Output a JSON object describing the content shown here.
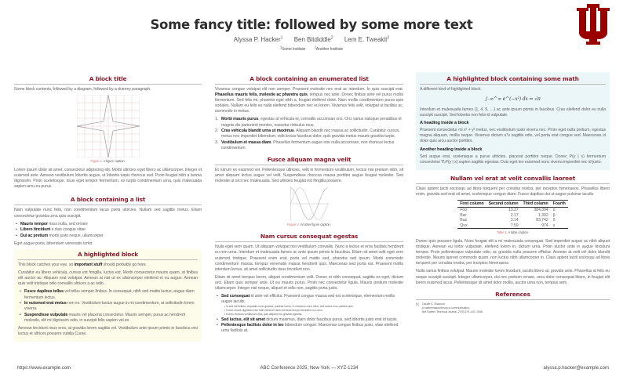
{
  "header": {
    "title": "Some fancy title: followed by some more text",
    "authors": [
      {
        "name": "Alyssa P. Hacker",
        "sup": "1"
      },
      {
        "name": "Ben Bitdiddle",
        "sup": "2"
      },
      {
        "name": "Lem E. Tweakit",
        "sup": "2"
      }
    ],
    "institutes": [
      {
        "sup": "1",
        "name": "Some Institute"
      },
      {
        "sup": "2",
        "name": "Another Institute"
      }
    ],
    "logo_text": "IU",
    "logo_color": "#990000"
  },
  "colors": {
    "block_title": "#8b1a2b",
    "highlight_yellow": "#fdfbea",
    "highlight_blue": "#eaf6f8"
  },
  "col1": {
    "b1": {
      "title": "A block title",
      "intro": "Some block contents, followed by a diagram, followed by a dummy paragraph.",
      "fig_label": "Figure 1.",
      "fig_caption": "A figure caption.",
      "para": "Lorem ipsum dolor sit amet, consectetur adipiscing elit. Morbi ultricies eget libero ac ullamcorper. Integer et euismod ante. Aenean vestibulum lobortis augue, ut lobortis turpis rhoncus sed. Proin feugiat nibh a lacinia dignissim. Proin scelerisque, risus eget tempor fermentum, ex turpis condimentum urna, quis malesuada sapien arcu eu purus."
    },
    "b2": {
      "title": "A block containing a list",
      "intro": "Nam vulputate nunc felis, non condimentum lacus porta ultricies. Nullam sed sagittis metus. Etiam consectetur gravida urna quis suscipit.",
      "items": [
        {
          "bold": "Mauris tempor",
          "text": " risus nulla, sed ornare"
        },
        {
          "bold": "Libero tincidunt",
          "text": " a duis congue vitae"
        },
        {
          "bold": "Dui ac pretium",
          "text": " morbi justo neque, ullamcorper"
        }
      ],
      "outro": "Eget augue porta, bibendum venenatis tortor."
    },
    "b3": {
      "title": "A highlighted block",
      "p1_pre": "This block catches your eye, so ",
      "p1_bold": "important stuff",
      "p1_post": " should probably go here.",
      "p2": "Curabitur eu libero vehicula, cursus est fringilla, luctus est. Morbi consectetur mauris quam, at finibus elit auctor ac. Aliquam erat volutpat. Aenean at nisl ut ex ullamcorper eleifend et eu augue. Aenean quis velit tristique odio convallis ultrices a ac odio.",
      "items": [
        {
          "bold": "Fusce dapibus tellus",
          "text": " vel tellus semper finibus. In consequat, nibh sed mattis luctus, augue diam fermentum lectus."
        },
        {
          "bold": "In euismod erat metus",
          "text": " non ex. Vestibulum luctus augue in mi condimentum, at sollicitudin lorem viverra."
        },
        {
          "bold": "Suspendisse vulputate",
          "text": " mauris vel placerat consectetur. Mauris semper, purus ac hendrerit molestie, elit mi dignissim odio, in suscipit felis sapien vel ex."
        }
      ],
      "p3": "Aenean tincidunt risus eros, at gravida lorem sagittis vel. Vestibulum ante ipsum primis in faucibus orci luctus et ultrices posuere cubilia Curae."
    }
  },
  "col2": {
    "b1": {
      "title": "A block containing an enumerated list",
      "p_pre": "Vivamus congue volutpat elit non semper. Praesent molestie nec erat ac interdum. In quis suscipit erat. ",
      "p_bold": "Phasellus mauris felis, molestie ac pharetra quis",
      "p_post": ", tempus nec ante. Donec finibus ante vel purus mollis fermentum. Sed felis mi, pharetra eget nibh a, feugiat eleifend dolor. Nam mollis condimentum purus quis sodales. Nullam eu felis eu nulla eleifend bibendum nec eu lorem. Vivamus felis velit, volutpat ut facilisis ac, commodo in metus.",
      "items": [
        {
          "n": "1.",
          "bold": "Morbi mauris purus",
          "text": ", egestas at vehicula et, convallis accumsan orci. Orci varius natoque penatibus et magnis dis parturient montes, nascetur ridiculus mus."
        },
        {
          "n": "2.",
          "bold": "Cras vehicula blandit urna ut maximus",
          "text": ". Aliquam blandit nec massa ac sollicitudin. Curabitur cursus, metus nec imperdiet bibendum, velit lectus faucibus dolor, quis gravida metus mauris gravida turpis."
        },
        {
          "n": "3.",
          "bold": "Vestibulum et massa diam",
          "text": ". Phasellus fermentum augue non nulla accumsan, non rhoncus lectus condimentum."
        }
      ]
    },
    "b2": {
      "title": "Fusce aliquam magna velit",
      "para": "Et rutrum ex euismod vel. Pellentesque ultricies, velit in fermentum vestibulum, lectus nisi pretium nibh, sit amet aliquam lectus augue vel velit. Suspendisse rhoncus massa porttitor augue feugiat molestie. Sed molestie ut orci nec malesuada. Sed ultricies feugiat est fringilla posuere.",
      "fig_label": "Figure 2.",
      "fig_caption": "Another figure caption."
    },
    "b3": {
      "title": "Nam cursus consequat egestas",
      "p1": "Nulla eget sem quam. Ut aliquam volutpat nisi vestibulum convallis. Nunc a lectus et eros facilisis hendrerit eu non urna. Interdum et malesuada fames ac ante ipsum primis in faucibus. Etiam sit amet velit eget sem euismod tristique. Praesent enim erat, porta vel mattis sed, pharetra sed ipsum. Morbi commodo condimentum massa, tempus venenatis massa hendrerit quis. Maecenas sed porta est. Praesent mollis interdum lectus, sit amet sollicitudin risus tincidunt non.",
      "p2": "Etiam sit amet tempus lorem, aliquet condimentum velit. Donec et nibh consequat, sagittis ex eget, dictum orci. Etiam quis semper ante. Ut eu mauris purus. Proin nec consectetur ligula. Mauris pretium molestie ullamcorper. Integer nisi neque, aliquet et odio non, sagittis porta justo.",
      "items": [
        {
          "bold": "Sed consequat",
          "text": " id ante vel efficitur. Praesent congue massa sed est scelerisque, elementum mollis augue iaculis.",
          "sub": [
            "In sed est finibus, vulputate nunc gravida, pulvinar lorem. In maximus nunc dolor, sed auctor eros porttitor quis.",
            "Fusce ornare dignissim nisi. Nam sit amet risus vel lacus tempor tincidunt eu a arcu.",
            "Donec rhoncus vestibulum erat, quis aliquam leo gravida egestas."
          ]
        },
        {
          "bold": "Sed luctus, elit sit amet",
          "text": " dictum maximus, diam dolor faucibus purus, sed lobortis justo erat id turpis."
        },
        {
          "bold": "Pellentesque facilisis dolor in leo",
          "text": " bibendum congue. Maecenas congue finibus justo, vitae eleifend urna facilisis at."
        }
      ]
    }
  },
  "col3": {
    "b1": {
      "title": "A highlighted block containing some math",
      "intro": "A different kind of highlighted block.",
      "formula": "∫₋∞^∞ e^(−x²) dx = √π",
      "p1": "Interdum et malesuada fames {1, 4, 9, …} ac ante ipsum primis in faucibus. Cras eleifend dolor eu nulla suscipit suscipit. Sed lobortis non felis id vulputate.",
      "h1": "A heading inside a block",
      "p2": "Praesent consectetur mi x² + y² metus, nec vestibulum justo viverra nec. Proin eget nulla pretium, egestas magna aliquam, mollis neque. Vivamus dictum uᵀv sagittis odio, vel porta erat congue sed. Maecenas ut dolor quis arcu auctor porttitor.",
      "h2": "Another heading inside a block",
      "p3": "Sed augue erat, scelerisque a purus ultricies, placerat porttitor neque. Donec P(y | x) fermentum consectetur ∇ₓP(y | x) sapien sagittis egestas. Duis eget leo euismod nunc viverra imperdiet nec id justo."
    },
    "b2": {
      "title": "Nullam vel erat at velit convallis laoreet",
      "intro": "Class aptent taciti sociosqu ad litora torquent per conubia nostra, per inceptos himenaeos. Phasellus libero enim, gravida sed erat sit amet, scelerisque congue diam. Fusce dapibus dui ut augue pulvinar iaculis.",
      "table": {
        "headers": [
          "First column",
          "Second column",
          "Third column",
          "Fourth"
        ],
        "rows": [
          [
            "Foo",
            "13.37",
            "384,394",
            "α"
          ],
          [
            "Bar",
            "2.17",
            "1,392",
            "β"
          ],
          [
            "Baz",
            "3.14",
            "83,742",
            "δ"
          ],
          [
            "Qux",
            "7.59",
            "974",
            "γ"
          ]
        ]
      },
      "table_label": "Table 1.",
      "table_caption": "A table caption.",
      "p1": "Donec quis posuere ligula. Nunc feugiat elit a mi malesuada consequat. Sed imperdiet augue ac nibh aliquet tristique. Aenean eu tortor vulputate, eleifend lorem in, dictum urna. Proin auctor ante in augue tincidunt tempor. Proin pellentesque vulputate odio, ac gravida nulla posuere efficitur. Aenean at velit vel dolor blandit molestie. Mauris laoreet commodo quam, non luctus nibh ullamcorper in. Class aptent taciti sociosqu ad litora torquent per conubia nostra, per inceptos himenaeos.",
      "p2": "Nulla varius finibus volutpat. Mauris molestie lorem tincidunt, iaculis libero at, gravida ante. Phasellus at felis eu neque suscipit suscipit. Integer ullamcorper, dui nec pretium ornare, urna dolor consequat libero, in feugiat elit lorem euismod lacus. Pellentesque sit amet dolor mollis, auctor urna non, tempus sem."
    },
    "refs": {
      "title": "References",
      "items": [
        {
          "n": "[1]",
          "lines": [
            "Claude E. Shannon.",
            "A mathematical theory of communication.",
            "Bell System Technical Journal, 27(3):379–423, 1948."
          ]
        }
      ]
    }
  },
  "footer": {
    "left": "https://www.example.com",
    "center": "ABC Conference 2025, New York — XYZ-1234",
    "right": "alyssa.p.hacker@example.com"
  }
}
